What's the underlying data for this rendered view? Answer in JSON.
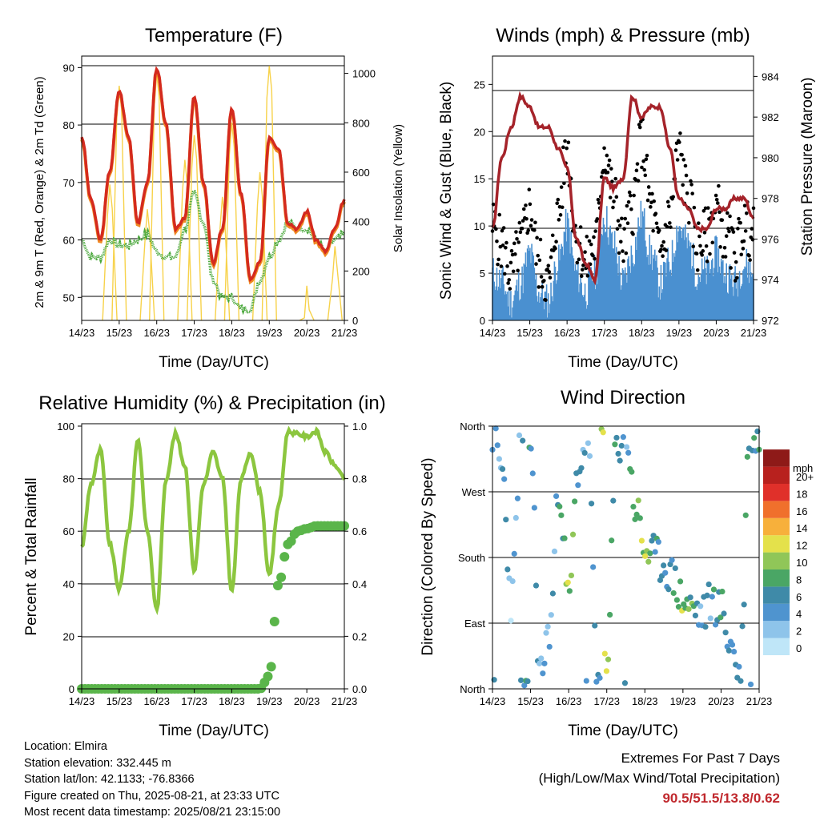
{
  "colors": {
    "temp_red": "#d42a1e",
    "temp_orange": "#f08a24",
    "dewpoint_green": "#4aa83c",
    "solar_yellow": "#f7d24a",
    "gust_black": "#000000",
    "wind_blue": "#4a90d0",
    "pressure_maroon": "#a5232a",
    "rh_lightgreen": "#8cc63f",
    "precip_green": "#5ab54a",
    "extremes_red": "#c0282d"
  },
  "x_ticks": [
    "14/23",
    "15/23",
    "16/23",
    "17/23",
    "18/23",
    "19/23",
    "20/23",
    "21/23"
  ],
  "panels": {
    "temperature": {
      "title": "Temperature (F)",
      "xlabel": "Time (Day/UTC)",
      "ylabel_left": "2m & 9m T (Red, Orange) & 2m Td (Green)",
      "ylabel_right": "Solar Insolation (Yellow)",
      "left_ticks": [
        "50",
        "60",
        "70",
        "80",
        "90"
      ],
      "right_ticks": [
        "0",
        "200",
        "400",
        "600",
        "800",
        "1000"
      ]
    },
    "winds": {
      "title": "Winds (mph) & Pressure (mb)",
      "xlabel": "Time (Day/UTC)",
      "ylabel_left": "Sonic Wind & Gust (Blue, Black)",
      "ylabel_right": "Station Pressure (Maroon)",
      "left_ticks": [
        "0",
        "5",
        "10",
        "15",
        "20",
        "25"
      ],
      "right_ticks": [
        "972",
        "974",
        "976",
        "978",
        "980",
        "982",
        "984"
      ]
    },
    "humidity": {
      "title": "Relative Humidity (%) & Precipitation (in)",
      "xlabel": "Time (Day/UTC)",
      "ylabel_left": "Percent & Total Rainfall",
      "left_ticks": [
        "0",
        "20",
        "40",
        "60",
        "80",
        "100"
      ],
      "right_ticks": [
        "0.0",
        "0.2",
        "0.4",
        "0.6",
        "0.8",
        "1.0"
      ]
    },
    "direction": {
      "title": "Wind Direction",
      "xlabel": "Time (Day/UTC)",
      "ylabel_left": "Direction (Colored By Speed)",
      "left_ticks": [
        "North",
        "East",
        "South",
        "West",
        "North"
      ],
      "colorbar_unit": "mph",
      "colorbar_labels": [
        "0",
        "2",
        "4",
        "6",
        "8",
        "10",
        "12",
        "14",
        "16",
        "18",
        "20+"
      ],
      "colorbar_colors": [
        "#bfe6f8",
        "#8ec4ea",
        "#4f94cf",
        "#3f8aa8",
        "#4aa665",
        "#90c658",
        "#e4e14b",
        "#f7b03b",
        "#f0702c",
        "#e0302a",
        "#b8211e",
        "#8e1a18"
      ]
    }
  },
  "info": {
    "location": "Location: Elmira",
    "elevation": "Station elevation: 332.445 m",
    "latlon": "Station lat/lon: 42.1133; -76.8366",
    "created": "Figure created on Thu, 2025-08-21, at 23:33 UTC",
    "recent": "Most recent data timestamp: 2025/08/21 23:15:00"
  },
  "extremes": {
    "line1": "Extremes For Past 7 Days",
    "line2": "(High/Low/Max Wind/Total Precipitation)",
    "values": "90.5/51.5/13.8/0.62"
  },
  "chart_data": [
    {
      "type": "line",
      "title": "Temperature (F)",
      "xlabel": "Time (Day/UTC)",
      "ylabel": "2m & 9m T (Red, Orange) & 2m Td (Green)",
      "ylabel_right": "Solar Insolation (Yellow)",
      "x": [
        "14/23",
        "15/03",
        "15/09",
        "15/15",
        "15/21",
        "16/03",
        "16/09",
        "16/15",
        "16/21",
        "17/03",
        "17/09",
        "17/15",
        "17/21",
        "18/03",
        "18/09",
        "18/15",
        "18/21",
        "19/03",
        "19/09",
        "19/15",
        "19/21",
        "20/03",
        "20/09",
        "20/15",
        "20/21",
        "21/03",
        "21/09",
        "21/15",
        "21/23"
      ],
      "ylim": [
        46,
        92
      ],
      "ylim_right": [
        0,
        1070
      ],
      "grid": true,
      "series": [
        {
          "name": "2m T",
          "values": [
            78,
            67,
            60,
            72,
            86,
            78,
            63,
            70,
            90,
            80,
            62,
            64,
            85,
            70,
            56,
            62,
            83,
            68,
            53,
            56,
            78,
            76,
            63,
            62,
            65,
            60,
            58,
            62,
            67
          ]
        },
        {
          "name": "2m Td",
          "values": [
            60,
            57,
            57,
            60,
            59,
            59,
            60,
            61,
            58,
            57,
            57,
            62,
            68,
            63,
            53,
            50,
            50,
            48,
            48,
            53,
            57,
            60,
            63,
            62,
            62,
            60,
            58,
            60,
            61
          ]
        },
        {
          "name": "Solar Insolation",
          "values": [
            0,
            0,
            0,
            550,
            950,
            0,
            0,
            450,
            1000,
            0,
            0,
            650,
            750,
            0,
            0,
            500,
            800,
            0,
            0,
            600,
            1030,
            0,
            0,
            0,
            140,
            0,
            0,
            300,
            0
          ]
        }
      ]
    },
    {
      "type": "line",
      "title": "Winds (mph) & Pressure (mb)",
      "xlabel": "Time (Day/UTC)",
      "ylabel": "Sonic Wind & Gust (Blue, Black)",
      "ylabel_right": "Station Pressure (Maroon)",
      "x": [
        "14/23",
        "15/03",
        "15/09",
        "15/15",
        "15/21",
        "16/03",
        "16/09",
        "16/15",
        "16/21",
        "17/03",
        "17/09",
        "17/15",
        "17/21",
        "18/03",
        "18/09",
        "18/15",
        "18/21",
        "19/03",
        "19/09",
        "19/15",
        "19/21",
        "20/03",
        "20/09",
        "20/15",
        "20/21",
        "21/03",
        "21/09",
        "21/15",
        "21/23"
      ],
      "ylim": [
        0,
        28
      ],
      "ylim_right": [
        972,
        985
      ],
      "grid": true,
      "series": [
        {
          "name": "Gust",
          "values": [
            10,
            8,
            5,
            8,
            12,
            6,
            4,
            11,
            18,
            9,
            6,
            8,
            18,
            13,
            8,
            12,
            19,
            12,
            7,
            11,
            18,
            13,
            8,
            9,
            12,
            9,
            7,
            10,
            9
          ]
        },
        {
          "name": "Wind",
          "values": [
            5,
            4,
            2,
            4,
            7,
            3,
            2,
            6,
            10,
            5,
            3,
            5,
            11,
            8,
            4,
            7,
            11,
            7,
            4,
            6,
            10,
            8,
            5,
            5,
            7,
            5,
            4,
            6,
            5
          ]
        },
        {
          "name": "Station Pressure",
          "values": [
            976.5,
            980,
            981.5,
            983,
            982.5,
            981.5,
            981.5,
            980.5,
            979.5,
            976,
            974.8,
            974,
            979,
            978.5,
            979,
            983,
            982,
            982.5,
            982.5,
            980.5,
            978,
            977.5,
            976.5,
            976.5,
            977.5,
            977.5,
            978,
            978,
            977
          ]
        }
      ]
    },
    {
      "type": "line",
      "title": "Relative Humidity (%) & Precipitation (in)",
      "xlabel": "Time (Day/UTC)",
      "ylabel": "Percent & Total Rainfall",
      "x": [
        "14/23",
        "15/03",
        "15/09",
        "15/15",
        "15/21",
        "16/03",
        "16/09",
        "16/15",
        "16/21",
        "17/03",
        "17/09",
        "17/15",
        "17/21",
        "18/03",
        "18/09",
        "18/15",
        "18/21",
        "19/03",
        "19/09",
        "19/15",
        "19/21",
        "20/03",
        "20/09",
        "20/15",
        "20/21",
        "21/03",
        "21/09",
        "21/15",
        "21/23"
      ],
      "ylim": [
        0,
        100
      ],
      "ylim_right": [
        0,
        1.0
      ],
      "grid": true,
      "series": [
        {
          "name": "Relative Humidity",
          "values": [
            54,
            78,
            91,
            55,
            38,
            60,
            95,
            60,
            30,
            80,
            97,
            85,
            45,
            78,
            90,
            80,
            37,
            80,
            90,
            75,
            43,
            70,
            98,
            97,
            96,
            98,
            90,
            85,
            80
          ]
        },
        {
          "name": "Total Precipitation",
          "values": [
            0,
            0,
            0,
            0,
            0,
            0,
            0,
            0,
            0,
            0,
            0,
            0,
            0,
            0,
            0,
            0,
            0,
            0,
            0,
            0,
            0.05,
            0.4,
            0.55,
            0.6,
            0.61,
            0.62,
            0.62,
            0.62,
            0.62
          ]
        }
      ]
    },
    {
      "type": "scatter",
      "title": "Wind Direction",
      "xlabel": "Time (Day/UTC)",
      "ylabel": "Direction (Colored By Speed)",
      "ylim": [
        "North",
        "North"
      ],
      "colorbar": "mph",
      "grid": true,
      "series": [
        {
          "name": "Direction",
          "x": [
            "14/23",
            "15/06",
            "15/12",
            "15/18",
            "16/00",
            "16/06",
            "16/12",
            "16/18",
            "17/00",
            "17/06",
            "17/12",
            "17/18",
            "18/00",
            "18/06",
            "18/12",
            "18/18",
            "19/00",
            "19/06",
            "19/12",
            "19/18",
            "20/00",
            "20/06",
            "20/12",
            "20/18",
            "21/00",
            "21/06",
            "21/12",
            "21/18",
            "21/23"
          ],
          "values": [
            350,
            300,
            120,
            350,
            340,
            20,
            80,
            280,
            120,
            300,
            350,
            10,
            20,
            330,
            350,
            250,
            190,
            180,
            170,
            150,
            120,
            110,
            100,
            120,
            110,
            60,
            20,
            350,
            340
          ]
        }
      ]
    }
  ]
}
